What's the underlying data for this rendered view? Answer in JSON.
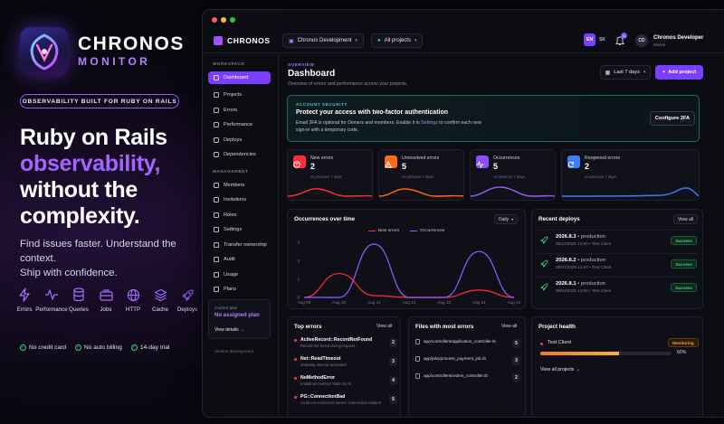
{
  "brand": {
    "name": "CHRONOS",
    "sub": "MONITOR",
    "tagline": "OBSERVABILITY BUILT FOR RUBY ON RAILS",
    "accent": "#9b5cff"
  },
  "hero": {
    "line1": "Ruby on Rails",
    "line2": "observability,",
    "line3": "without the",
    "line4": "complexity.",
    "sub1": "Find issues faster. Understand the context.",
    "sub2": "Ship with confidence."
  },
  "features": [
    {
      "label": "Errors",
      "icon": "bolt-icon"
    },
    {
      "label": "Performance",
      "icon": "pulse-icon"
    },
    {
      "label": "Queries",
      "icon": "database-icon"
    },
    {
      "label": "Jobs",
      "icon": "briefcase-icon"
    },
    {
      "label": "HTTP",
      "icon": "globe-icon"
    },
    {
      "label": "Cache",
      "icon": "layers-icon"
    },
    {
      "label": "Deploys",
      "icon": "rocket-icon"
    }
  ],
  "perks": [
    "No credit card",
    "No auto billing",
    "14-day trial"
  ],
  "app": {
    "brand": "CHRONOS",
    "project_select": "Chronos Development",
    "env_select": "All projects",
    "lang_en": "EN",
    "lang_sk": "SK",
    "notif_count": "11",
    "user_initials": "CD",
    "user_name": "Chronos Developer",
    "user_role": "Owner"
  },
  "sidebar": {
    "workspace_label": "WORKSPACE",
    "items": [
      {
        "label": "Dashboard",
        "active": true
      },
      {
        "label": "Projects"
      },
      {
        "label": "Errors"
      },
      {
        "label": "Performance"
      },
      {
        "label": "Deploys"
      },
      {
        "label": "Dependencies"
      }
    ],
    "management_label": "MANAGEMENT",
    "mgmt_items": [
      {
        "label": "Members"
      },
      {
        "label": "Invitations"
      },
      {
        "label": "Roles"
      },
      {
        "label": "Settings"
      },
      {
        "label": "Transfer ownership"
      },
      {
        "label": "Audit"
      },
      {
        "label": "Usage"
      },
      {
        "label": "Plans"
      }
    ],
    "plan_title": "Current plan",
    "plan_name": "No assigned plan",
    "plan_link": "View details →",
    "version": "Version development"
  },
  "header": {
    "overview": "OVERVIEW",
    "title": "Dashboard",
    "subtitle": "Overview of errors and performance across your projects.",
    "range": "Last 7 days",
    "add": "Add project"
  },
  "security": {
    "label": "ACCOUNT SECURITY",
    "title": "Protect your access with two-factor authentication",
    "body_pre": "Email 2FA is optional for Owners and members. Enable it in ",
    "body_link": "Settings",
    "body_post": " to confirm each new sign-in with a temporary code.",
    "button": "Configure 2FA"
  },
  "stats": [
    {
      "label": "New errors",
      "value": "2",
      "note": "vs previous 7 days",
      "color": "#ff2d3a",
      "icon": "alert-icon"
    },
    {
      "label": "Unresolved errors",
      "value": "5",
      "note": "vs previous 7 days",
      "color": "#ff6a1a",
      "icon": "warning-icon"
    },
    {
      "label": "Occurrences",
      "value": "5",
      "note": "vs previous 7 days",
      "color": "#8b4dff",
      "icon": "activity-icon"
    },
    {
      "label": "Reopened errors",
      "value": "2",
      "note": "vs previous 7 days",
      "color": "#3d7bff",
      "icon": "refresh-icon"
    }
  ],
  "occurrences": {
    "title": "Occurrences over time",
    "range": "Daily"
  },
  "chart_data": {
    "type": "line",
    "title": "Occurrences over time",
    "categories": [
      "Aug 09",
      "Aug 10",
      "Aug 11",
      "Aug 12",
      "Aug 13",
      "Aug 14",
      "Aug 15"
    ],
    "series": [
      {
        "name": "New errors",
        "values": [
          0,
          1.3,
          0.1,
          0,
          0,
          0.4,
          0
        ],
        "color": "#ff2d3a"
      },
      {
        "name": "Occurrences",
        "values": [
          0,
          0,
          2.9,
          0,
          0,
          2.5,
          0
        ],
        "color": "#9b5cff"
      }
    ],
    "y_ticks": [
      "0",
      "1",
      "2",
      "3"
    ],
    "ylim": [
      0,
      3
    ],
    "grid": true,
    "legend": "top"
  },
  "deploys": {
    "title": "Recent deploys",
    "view_all": "View all",
    "items": [
      {
        "version": "2026.8.3",
        "env": "• production",
        "meta": "08/12/2026 14:00 • Test Client",
        "status": "Success"
      },
      {
        "version": "2026.8.2",
        "env": "• production",
        "meta": "08/07/2026 14:00 • Test Client",
        "status": "Success"
      },
      {
        "version": "2026.8.1",
        "env": "• production",
        "meta": "08/02/2026 14:00 • Test Client",
        "status": "Success"
      }
    ]
  },
  "top_errors": {
    "title": "Top errors",
    "view_all": "View all",
    "items": [
      {
        "name": "ActiveRecord::RecordNotFound",
        "msg": "Record not found during request",
        "count": "2"
      },
      {
        "name": "Net::ReadTimeout",
        "msg": "Gateway timeout exceeded",
        "count": "3"
      },
      {
        "name": "NoMethodError",
        "msg": "undefined method 'total' for nil",
        "count": "4"
      },
      {
        "name": "PG::ConnectionBad",
        "msg": "could not connect to server: Connection refused",
        "count": "5"
      }
    ]
  },
  "files": {
    "title": "Files with most errors",
    "view_all": "View all",
    "items": [
      {
        "name": "app/controllers/application_controller.rb",
        "count": "5"
      },
      {
        "name": "app/jobs/process_payment_job.rb",
        "count": "3"
      },
      {
        "name": "app/controllers/orders_controller.rb",
        "count": "2"
      }
    ]
  },
  "health": {
    "title": "Project health",
    "project": "Test Client",
    "status": "Monitoring",
    "percent_label": "60%",
    "percent": 60,
    "link": "View all projects →"
  }
}
